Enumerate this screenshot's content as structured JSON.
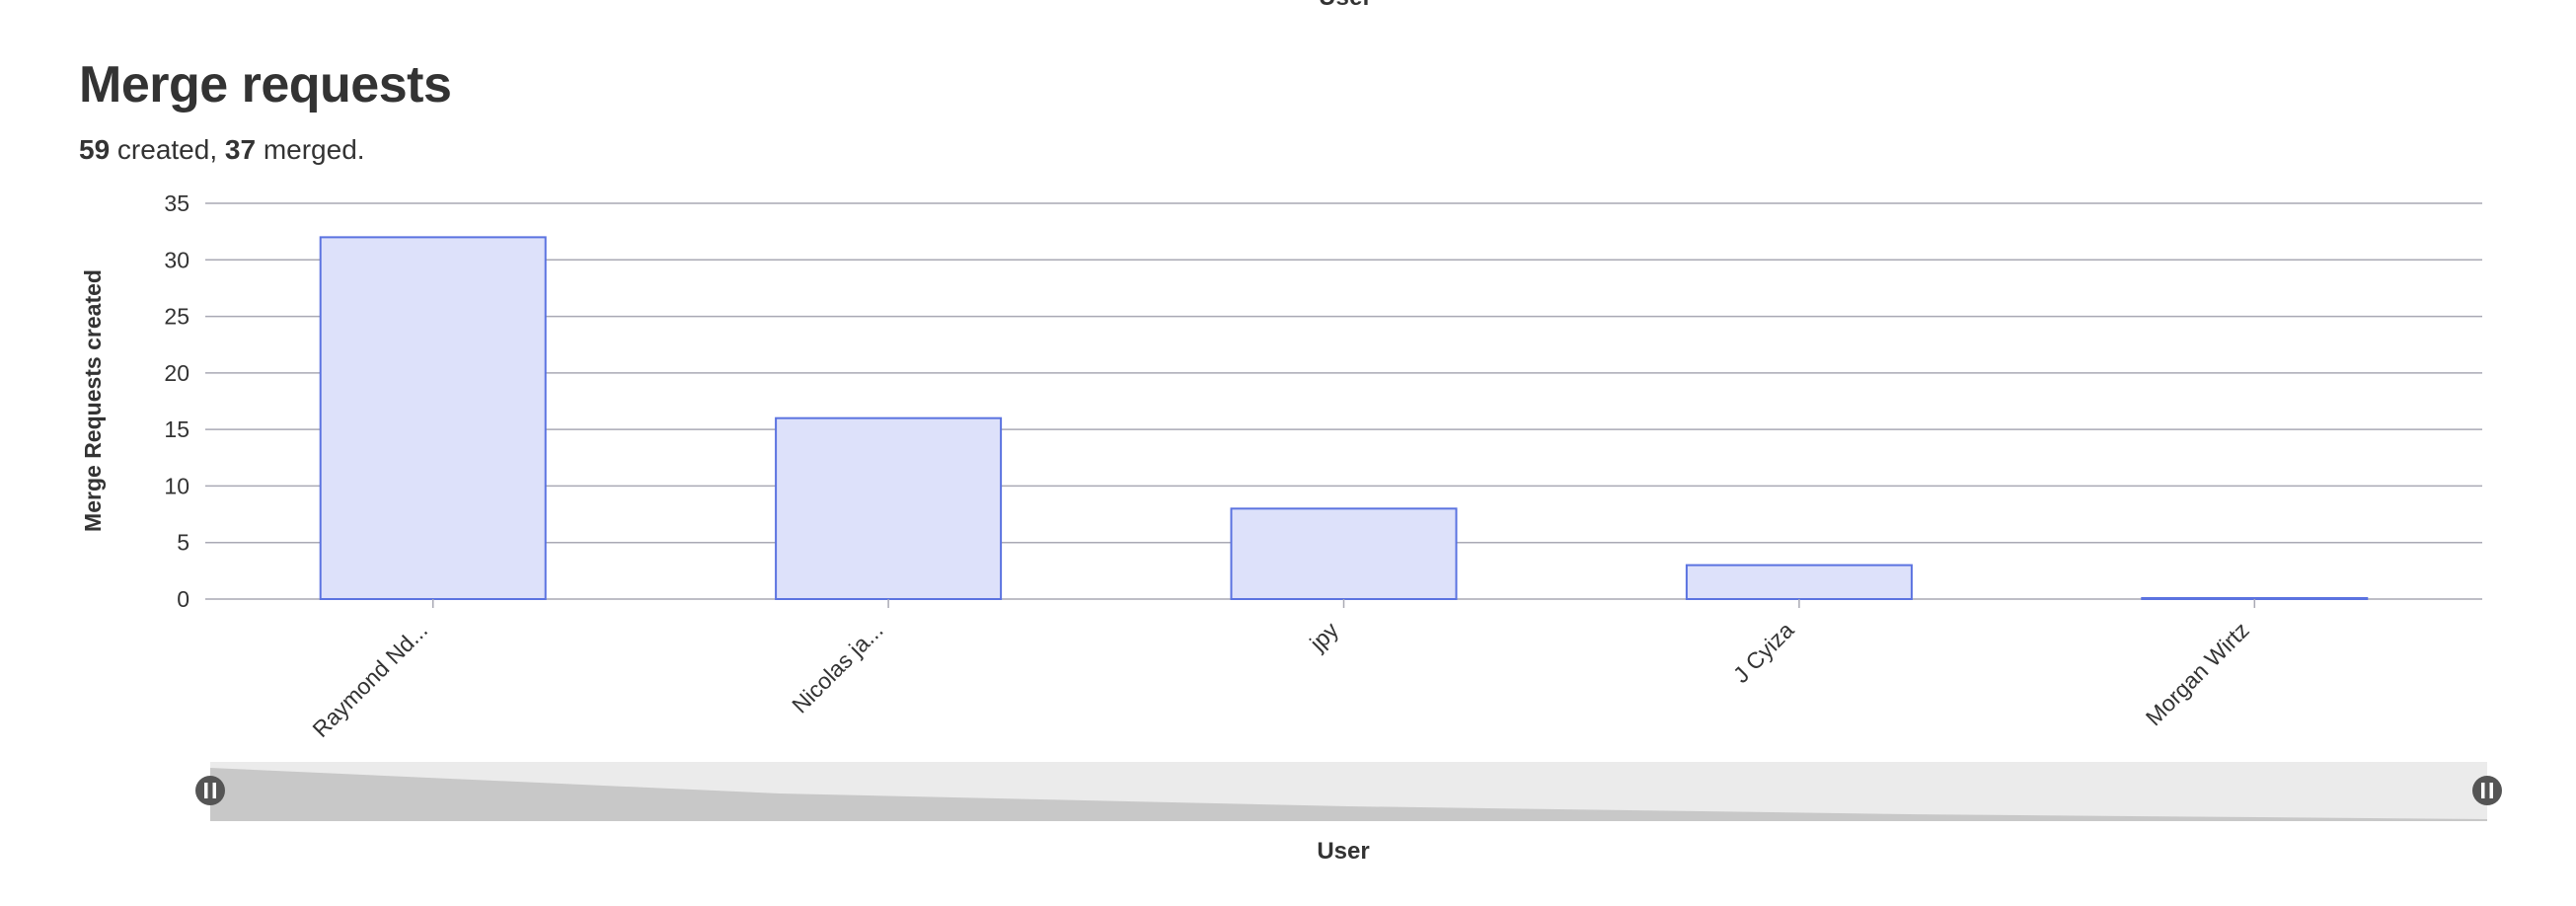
{
  "header": {
    "previous_chart_axis_label": "User",
    "title": "Merge requests",
    "summary": {
      "created_count": "59",
      "created_text": " created, ",
      "merged_count": "37",
      "merged_text": " merged."
    }
  },
  "colors": {
    "bar_fill": "#dde1fa",
    "bar_stroke": "#5b73e0",
    "grid": "#a9a9b4",
    "zoom_track": "#ebebeb",
    "zoom_area": "#c8c8c8",
    "zoom_handle": "#555555"
  },
  "chart_data": {
    "type": "bar",
    "categories": [
      "Raymond Nd...",
      "Nicolas ja...",
      "jpy",
      "J Cyiza",
      "Morgan Wirtz"
    ],
    "values": [
      32,
      16,
      8,
      3,
      0
    ],
    "xlabel": "User",
    "ylabel": "Merge Requests created",
    "ylim": [
      0,
      35
    ],
    "yticks": [
      0,
      5,
      10,
      15,
      20,
      25,
      30,
      35
    ],
    "grid": true,
    "legend": "none",
    "zoom_slider": true
  }
}
